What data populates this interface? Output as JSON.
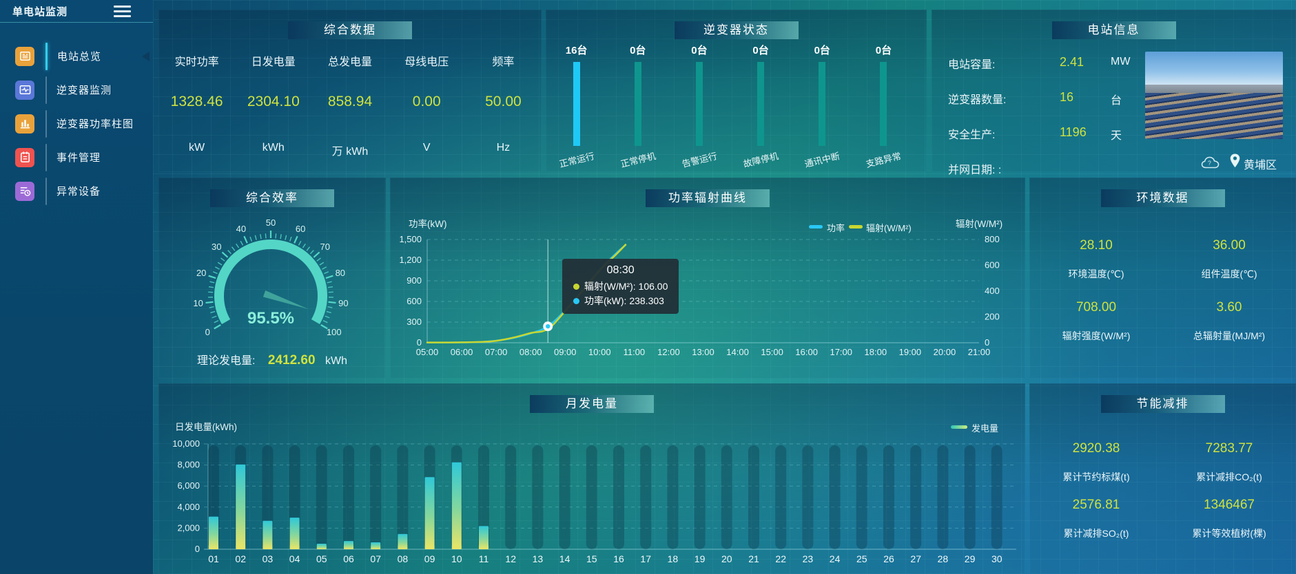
{
  "colors": {
    "accent_yellow": "#cfe23f",
    "power_cyan": "#29c8f5",
    "radiation_yellow": "#c8d630",
    "inverter_active_bar": "#1fc9f6",
    "inverter_idle_bar": "#0e968e",
    "gauge_teal": "#54d6c6"
  },
  "sidebar": {
    "title": "单电站监测",
    "items": [
      {
        "name": "overview",
        "label": "电站总览",
        "icon": "overview-icon",
        "color": "#e9a23b",
        "active": true
      },
      {
        "name": "inverter-monitor",
        "label": "逆变器监测",
        "icon": "inverter-monitor-icon",
        "color": "#5a77d8",
        "active": false
      },
      {
        "name": "inverter-power-bars",
        "label": "逆变器功率柱图",
        "icon": "inverter-power-bars-icon",
        "color": "#e9a23b",
        "active": false
      },
      {
        "name": "event-management",
        "label": "事件管理",
        "icon": "event-management-icon",
        "color": "#ef5350",
        "active": false
      },
      {
        "name": "abnormal-devices",
        "label": "异常设备",
        "icon": "abnormal-devices-icon",
        "color": "#9c6ad6",
        "active": false
      }
    ]
  },
  "summary": {
    "title": "综合数据",
    "stats": [
      {
        "label": "实时功率",
        "value": "1328.46",
        "unit": "kW"
      },
      {
        "label": "日发电量",
        "value": "2304.10",
        "unit": "kWh"
      },
      {
        "label": "总发电量",
        "value": "858.94",
        "unit": "万 kWh"
      },
      {
        "label": "母线电压",
        "value": "0.00",
        "unit": "V"
      },
      {
        "label": "频率",
        "value": "50.00",
        "unit": "Hz"
      }
    ]
  },
  "inverter_status": {
    "title": "逆变器状态",
    "unit_suffix": "台",
    "items": [
      {
        "label": "正常运行",
        "count": 16,
        "highlight": true
      },
      {
        "label": "正常停机",
        "count": 0,
        "highlight": false
      },
      {
        "label": "告警运行",
        "count": 0,
        "highlight": false
      },
      {
        "label": "故障停机",
        "count": 0,
        "highlight": false
      },
      {
        "label": "通讯中断",
        "count": 0,
        "highlight": false
      },
      {
        "label": "支路异常",
        "count": 0,
        "highlight": false
      }
    ]
  },
  "station_info": {
    "title": "电站信息",
    "rows": [
      {
        "label": "电站容量:",
        "value": "2.41",
        "unit": "MW"
      },
      {
        "label": "逆变器数量:",
        "value": "16",
        "unit": "台"
      },
      {
        "label": "安全生产:",
        "value": "1196",
        "unit": "天"
      },
      {
        "label": "并网日期:  :",
        "value": "",
        "unit": ""
      }
    ],
    "location": "黄埔区"
  },
  "efficiency": {
    "title": "综合效率",
    "theoretical_label": "理论发电量:",
    "theoretical_value": "2412.60",
    "theoretical_unit": "kWh"
  },
  "environment": {
    "title": "环境数据",
    "stats": [
      {
        "value": "28.10",
        "label": "环境温度(℃)"
      },
      {
        "value": "36.00",
        "label": "组件温度(℃)"
      },
      {
        "value": "708.00",
        "label": "辐射强度(W/M²)"
      },
      {
        "value": "3.60",
        "label": "总辐射量(MJ/M²)"
      }
    ]
  },
  "energy_saving": {
    "title": "节能减排",
    "stats": [
      {
        "value": "2920.38",
        "label": "累计节约标煤(t)"
      },
      {
        "value": "7283.77",
        "label": "累计减排CO₂(t)"
      },
      {
        "value": "2576.81",
        "label": "累计减排SO₂(t)"
      },
      {
        "value": "1346467",
        "label": "累计等效植树(棵)"
      }
    ]
  },
  "chart_data": [
    {
      "type": "line",
      "title": "功率辐射曲线",
      "x_hours": [
        5,
        5.5,
        6,
        6.5,
        7,
        7.5,
        8,
        8.5,
        9,
        9.5,
        10,
        10.5,
        10.75
      ],
      "series": [
        {
          "name": "功率",
          "color": "#29c8f5",
          "axis": "left",
          "values": [
            3,
            3,
            5,
            10,
            30,
            70,
            135,
            238.303,
            470,
            760,
            1060,
            1310,
            1420
          ]
        },
        {
          "name": "辐射(W/M²)",
          "color": "#c8d630",
          "axis": "right",
          "values": [
            2,
            2,
            3,
            6,
            15,
            40,
            75,
            106,
            245,
            400,
            560,
            690,
            760
          ]
        }
      ],
      "left_axis": {
        "label": "功率(kW)",
        "max": 1500,
        "ticks": [
          "0",
          "300",
          "600",
          "900",
          "1,200",
          "1,500"
        ]
      },
      "right_axis": {
        "label": "辐射(W/M²)",
        "max": 800,
        "ticks": [
          "0",
          "200",
          "400",
          "600",
          "800"
        ]
      },
      "x_ticks": [
        "05:00",
        "06:00",
        "07:00",
        "08:00",
        "09:00",
        "10:00",
        "11:00",
        "12:00",
        "13:00",
        "14:00",
        "15:00",
        "16:00",
        "17:00",
        "18:00",
        "19:00",
        "20:00",
        "21:00"
      ],
      "grid": true,
      "legend_position": "top-right",
      "tooltip": {
        "time": "08:30",
        "marker_hour": 8.5,
        "rows": [
          {
            "name": "辐射(W/M²)",
            "value": "106.00",
            "color": "#c8d630"
          },
          {
            "name": "功率(kW)",
            "value": "238.303",
            "color": "#29c8f5"
          }
        ]
      }
    },
    {
      "type": "bar",
      "title": "月发电量",
      "ylabel": "日发电量(kWh)",
      "legend": "发电量",
      "categories": [
        "01",
        "02",
        "03",
        "04",
        "05",
        "06",
        "07",
        "08",
        "09",
        "10",
        "11",
        "12",
        "13",
        "14",
        "15",
        "16",
        "17",
        "18",
        "19",
        "20",
        "21",
        "22",
        "23",
        "24",
        "25",
        "26",
        "27",
        "28",
        "29",
        "30"
      ],
      "values": [
        3100,
        8050,
        2700,
        3000,
        520,
        780,
        650,
        1450,
        6850,
        8250,
        2200,
        0,
        0,
        0,
        0,
        0,
        0,
        0,
        0,
        0,
        0,
        0,
        0,
        0,
        0,
        0,
        0,
        0,
        0,
        0
      ],
      "ylim": [
        0,
        10000
      ],
      "yticks": [
        "0",
        "2,000",
        "4,000",
        "6,000",
        "8,000",
        "10,000"
      ],
      "grid": true
    },
    {
      "type": "bar",
      "title": "逆变器状态",
      "categories": [
        "正常运行",
        "正常停机",
        "告警运行",
        "故障停机",
        "通讯中断",
        "支路异常"
      ],
      "values": [
        16,
        0,
        0,
        0,
        0,
        0
      ],
      "unit": "台"
    },
    {
      "type": "gauge",
      "title": "综合效率",
      "min": 0,
      "max": 100,
      "value": 95.5,
      "label": "95.5%",
      "tick_labels": [
        "0",
        "10",
        "20",
        "30",
        "40",
        "50",
        "60",
        "70",
        "80",
        "90",
        "100"
      ]
    }
  ]
}
